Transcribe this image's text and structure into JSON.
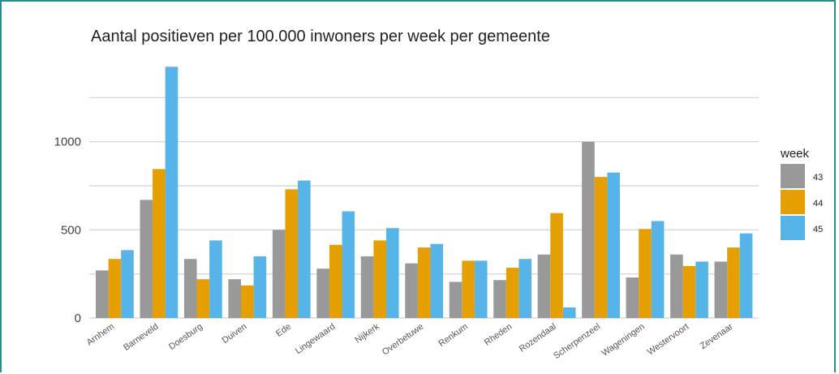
{
  "chart_data": {
    "type": "bar",
    "title": "Aantal positieven per 100.000 inwoners per week per gemeente",
    "xlabel": "",
    "ylabel": "",
    "categories": [
      "Arnhem",
      "Barneveld",
      "Doesburg",
      "Duiven",
      "Ede",
      "Lingewaard",
      "Nijkerk",
      "Overbetuwe",
      "Renkum",
      "Rheden",
      "Rozendaal",
      "Scherpenzeel",
      "Wageningen",
      "Westervoort",
      "Zevenaar"
    ],
    "legend_title": "week",
    "legend_position": "right",
    "series": [
      {
        "name": "43",
        "color": "#999999",
        "values": [
          270,
          670,
          335,
          220,
          500,
          280,
          350,
          310,
          205,
          215,
          360,
          1000,
          230,
          360,
          320
        ]
      },
      {
        "name": "44",
        "color": "#e69f00",
        "values": [
          335,
          845,
          220,
          185,
          730,
          415,
          440,
          400,
          325,
          285,
          595,
          800,
          505,
          295,
          400
        ]
      },
      {
        "name": "45",
        "color": "#56b4e9",
        "values": [
          385,
          1425,
          440,
          350,
          780,
          605,
          510,
          420,
          325,
          335,
          60,
          825,
          550,
          320,
          480
        ]
      }
    ],
    "ylim": [
      0,
      1500
    ],
    "yticks": [
      0,
      500,
      1000
    ],
    "ytick_labels": [
      "0",
      "500",
      "1000"
    ],
    "gridlines": [
      0,
      250,
      500,
      750,
      1000,
      1250
    ],
    "grid": true
  }
}
